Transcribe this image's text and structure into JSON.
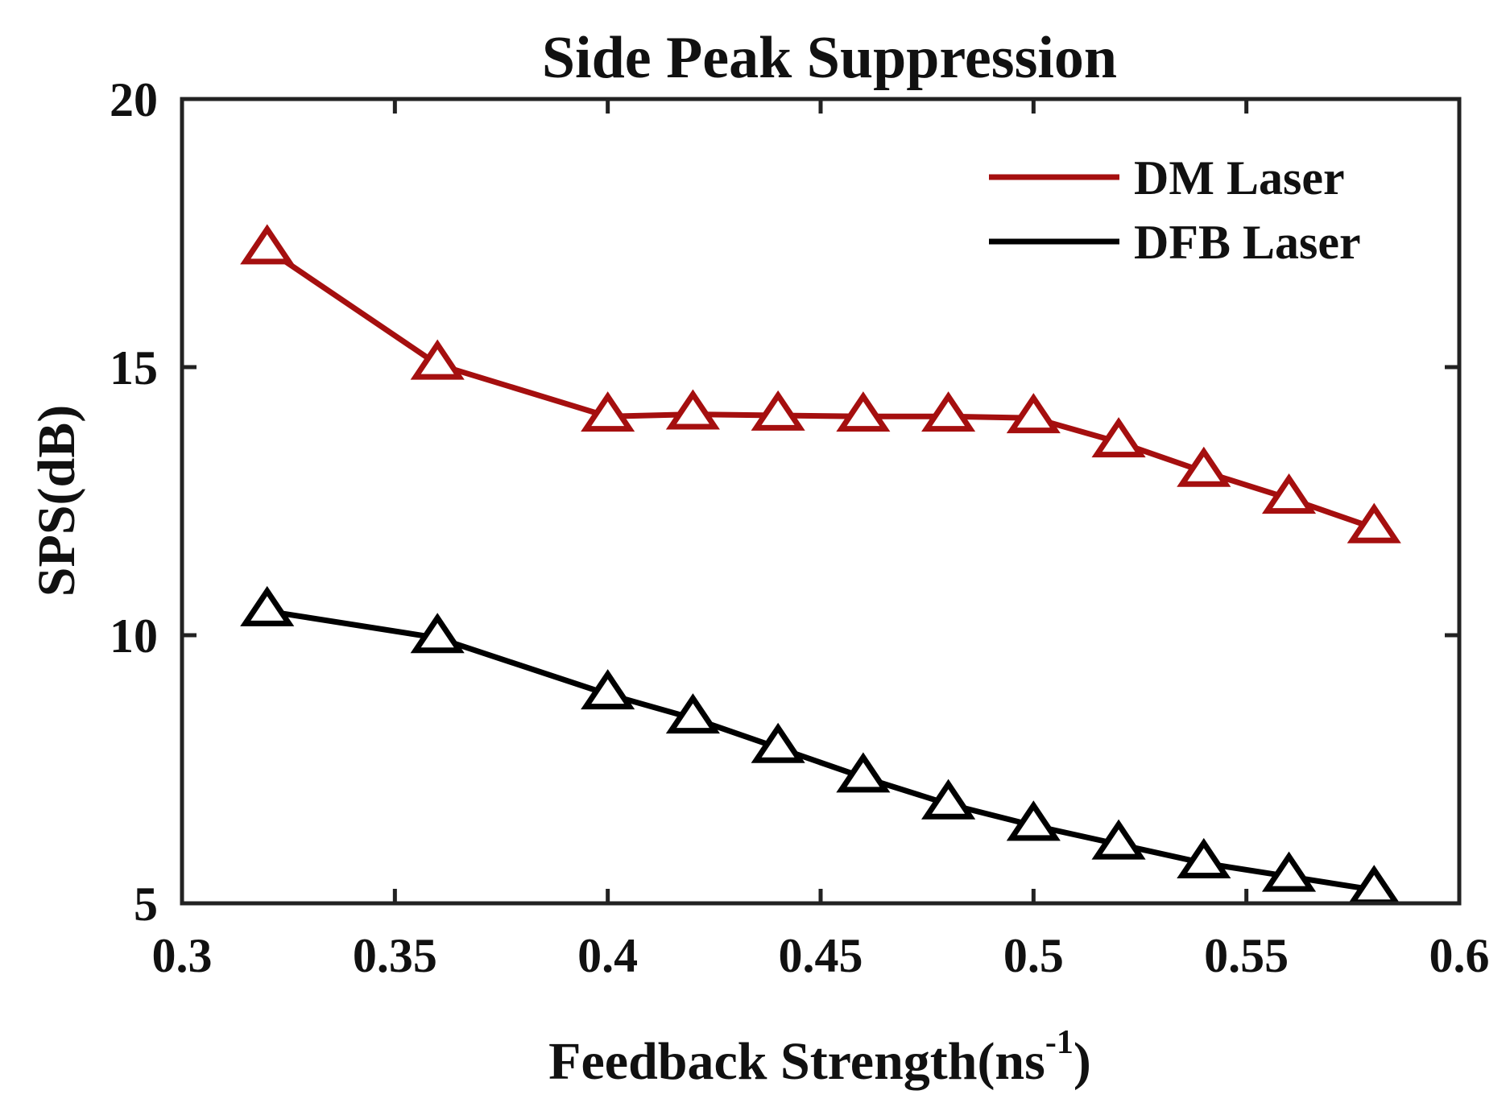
{
  "chart_data": {
    "type": "line",
    "title": "Side Peak Suppression",
    "xlabel": "Feedback Strength(ns",
    "xlabel_superscript": "-1",
    "xlabel_suffix": ")",
    "ylabel": "SPS(dB)",
    "xlim": [
      0.3,
      0.6
    ],
    "ylim": [
      5,
      20
    ],
    "xticks": [
      "0.3",
      "0.35",
      "0.4",
      "0.45",
      "0.5",
      "0.55",
      "0.6"
    ],
    "yticks": [
      "5",
      "10",
      "15",
      "20"
    ],
    "grid": false,
    "legend_position": "top-right",
    "marker": "triangle-open",
    "x": [
      0.32,
      0.36,
      0.4,
      0.42,
      0.44,
      0.46,
      0.48,
      0.5,
      0.52,
      0.54,
      0.56,
      0.58
    ],
    "series": [
      {
        "name": "DM Laser",
        "color": "#a50f0f",
        "values": [
          17.2,
          15.05,
          14.08,
          14.12,
          14.1,
          14.08,
          14.08,
          14.05,
          13.6,
          13.05,
          12.55,
          12.0
        ]
      },
      {
        "name": "DFB Laser",
        "color": "#000000",
        "values": [
          10.45,
          9.95,
          8.9,
          8.45,
          7.9,
          7.35,
          6.85,
          6.45,
          6.1,
          5.75,
          5.5,
          5.25
        ]
      }
    ]
  }
}
